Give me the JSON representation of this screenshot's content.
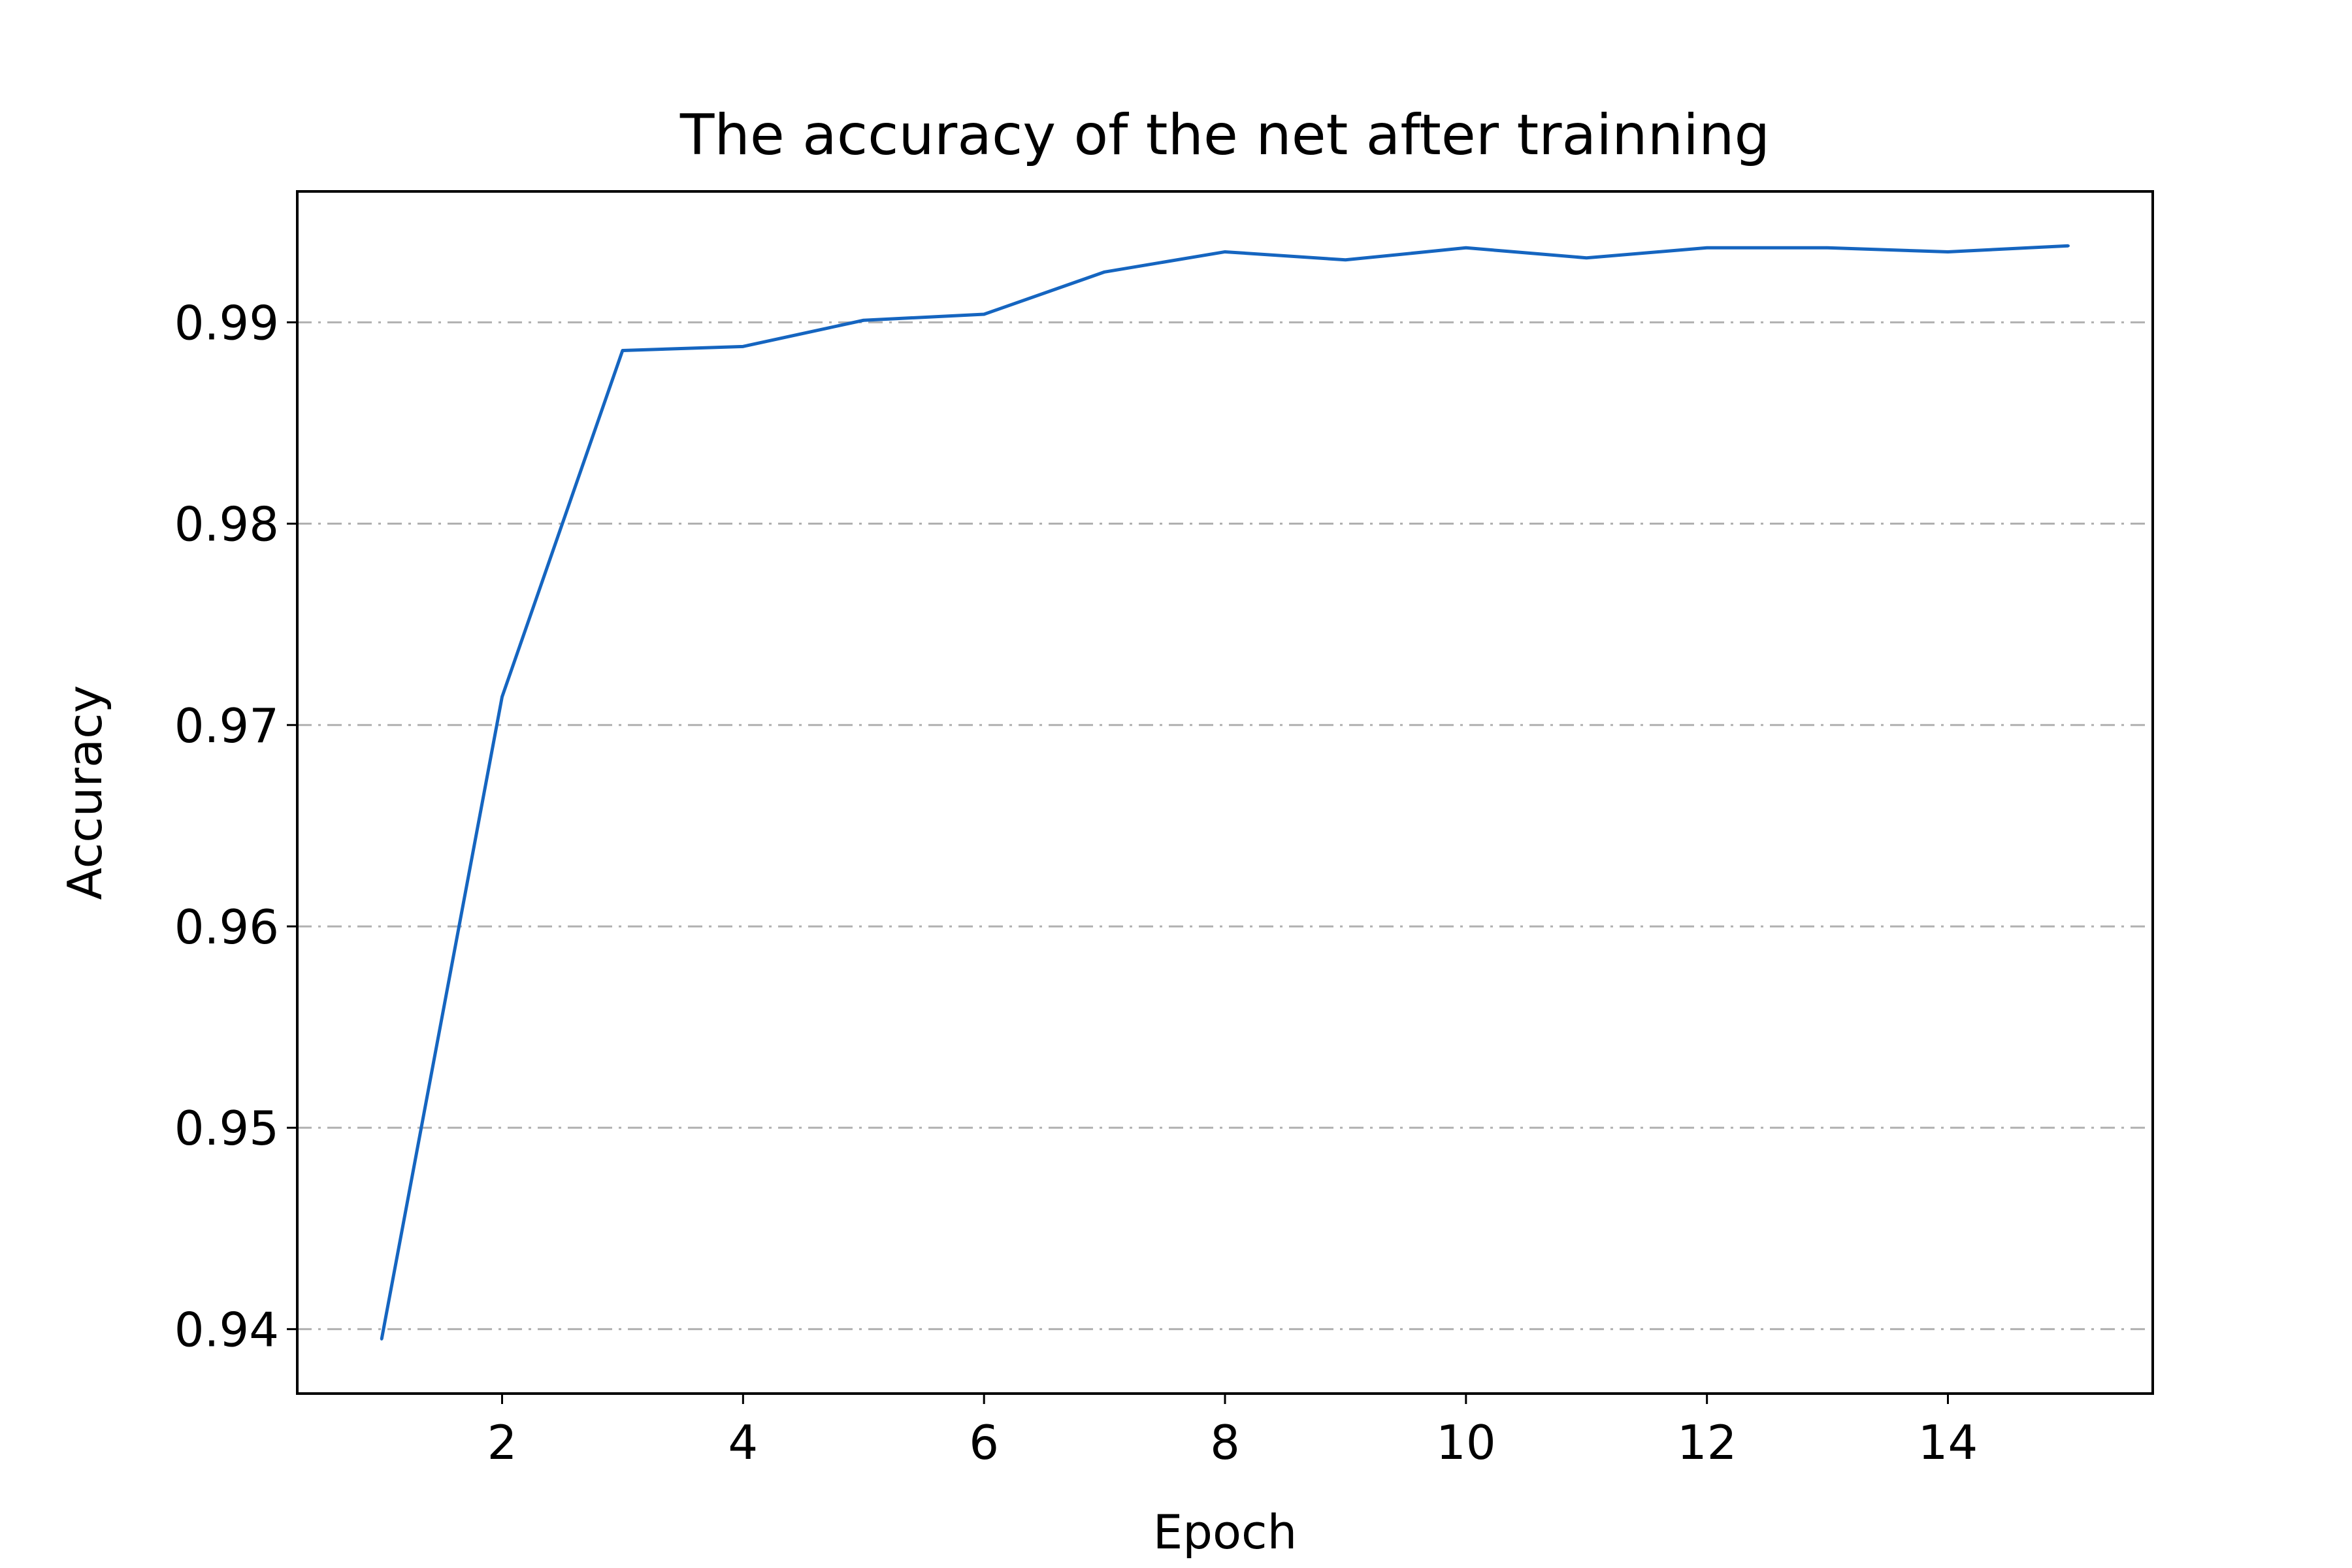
{
  "chart_data": {
    "type": "line",
    "title": "The accuracy of the net after trainning",
    "xlabel": "Epoch",
    "ylabel": "Accuracy",
    "x": [
      1,
      2,
      3,
      4,
      5,
      6,
      7,
      8,
      9,
      10,
      11,
      12,
      13,
      14,
      15
    ],
    "series": [
      {
        "values": [
          0.9395,
          0.9714,
          0.9886,
          0.9888,
          0.9901,
          0.9904,
          0.9925,
          0.9935,
          0.9931,
          0.9937,
          0.9932,
          0.9937,
          0.9937,
          0.9935,
          0.9938
        ],
        "color": "#1565c0"
      }
    ],
    "xlim": [
      0.3,
      15.7
    ],
    "ylim": [
      0.9368,
      0.9965
    ],
    "xticks": [
      2,
      4,
      6,
      8,
      10,
      12,
      14
    ],
    "xtick_labels": [
      "2",
      "4",
      "6",
      "8",
      "10",
      "12",
      "14"
    ],
    "yticks": [
      0.94,
      0.95,
      0.96,
      0.97,
      0.98,
      0.99
    ],
    "ytick_labels": [
      "0.94",
      "0.95",
      "0.96",
      "0.97",
      "0.98",
      "0.99"
    ],
    "grid": "y",
    "grid_style": "dash-dot",
    "grid_color": "#b0b0b0",
    "legend": "none"
  }
}
